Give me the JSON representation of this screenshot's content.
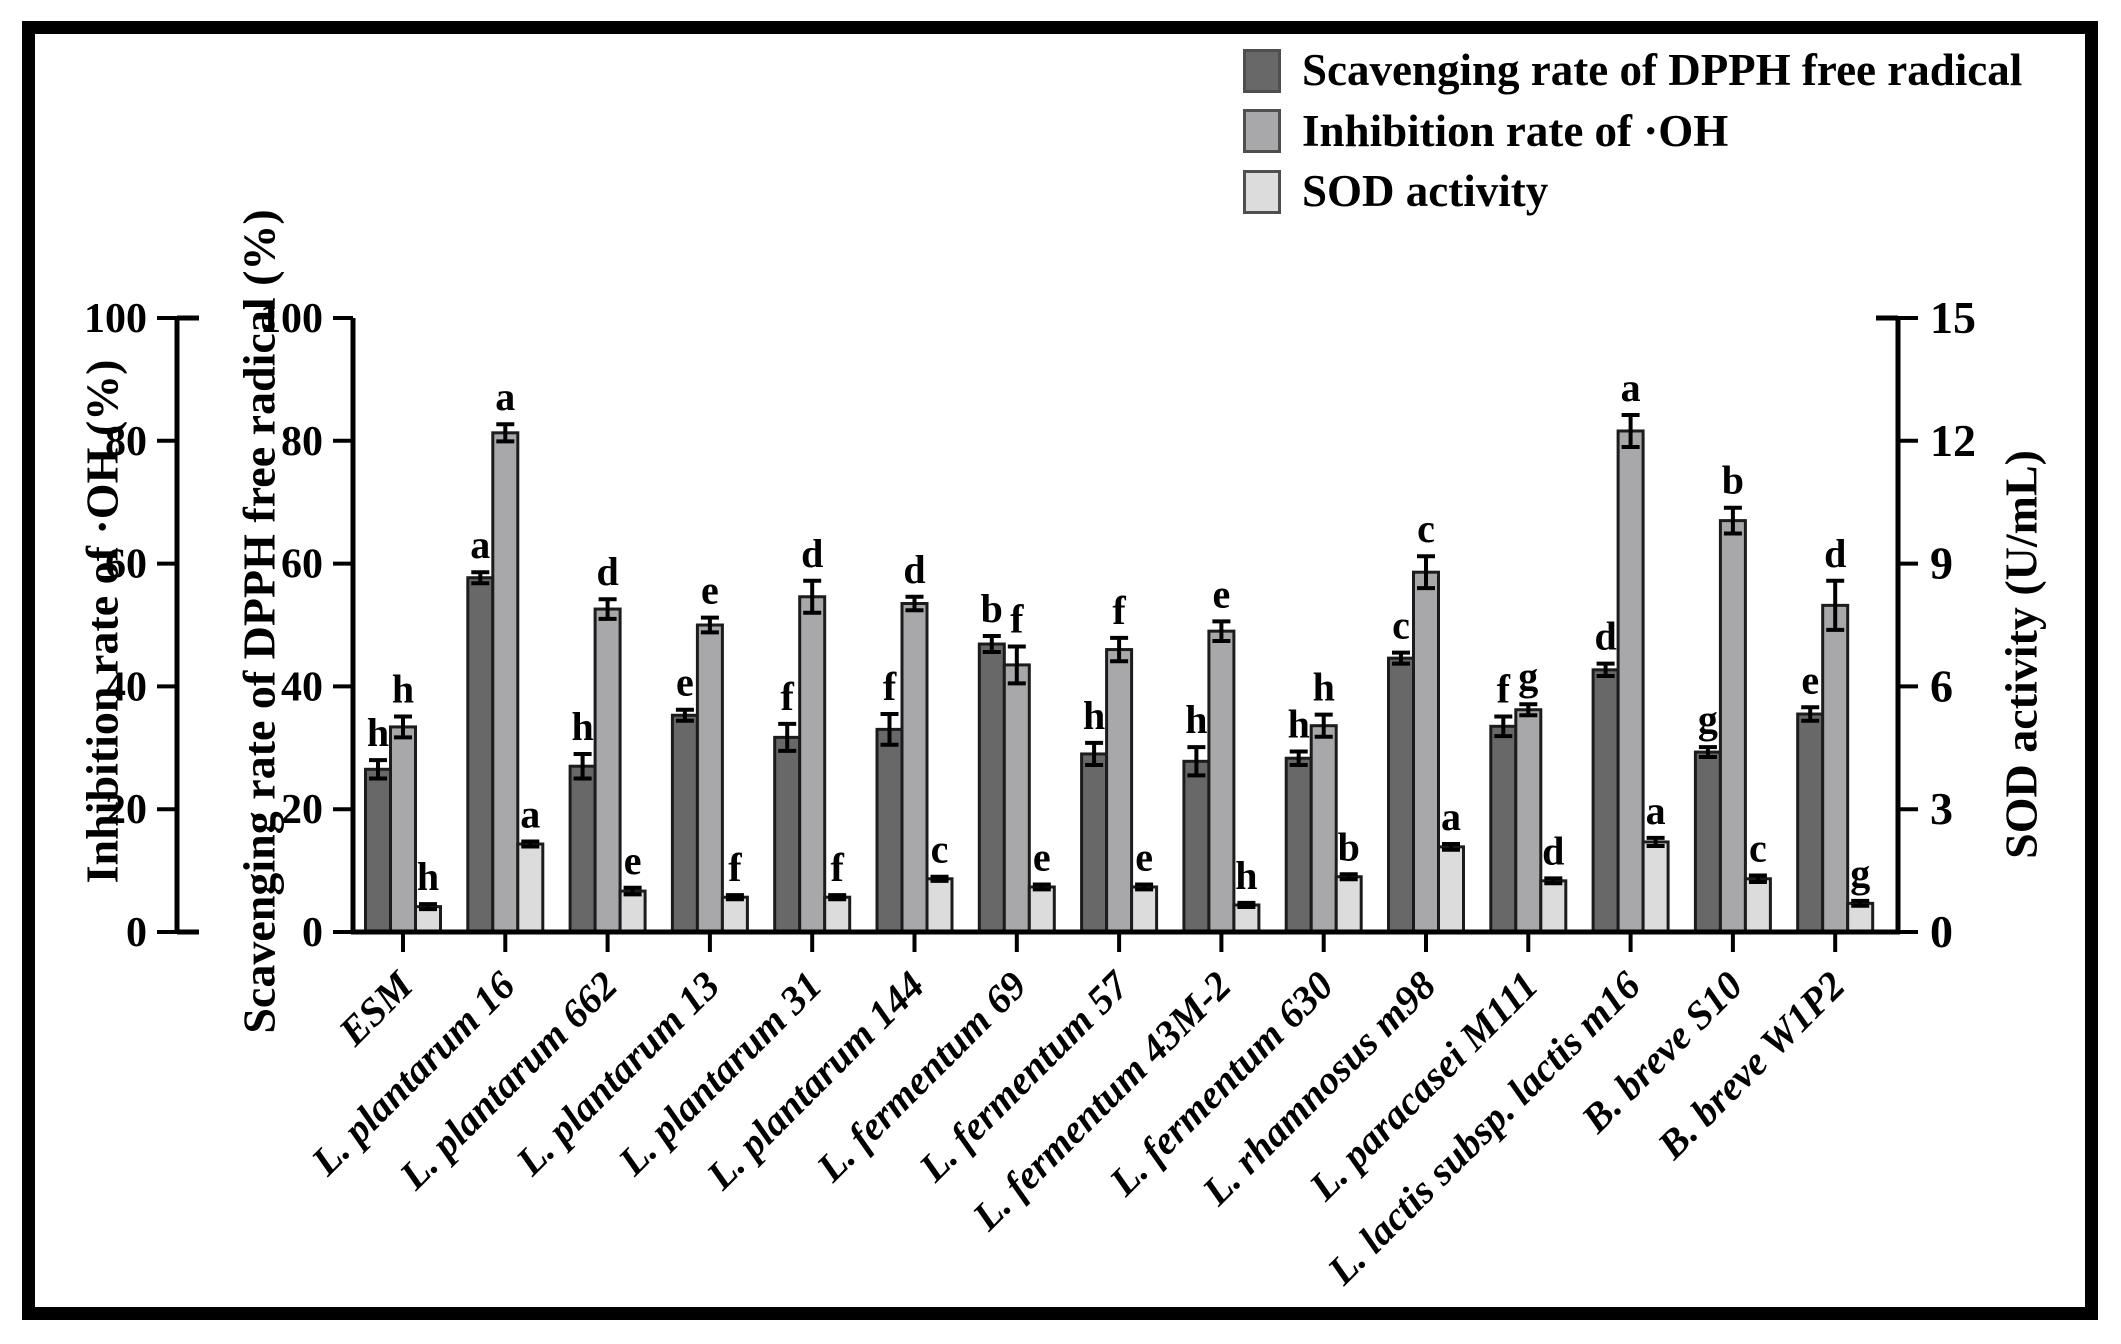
{
  "legend": {
    "items": [
      {
        "label": "Scavenging rate of DPPH free radical",
        "color": "#686868"
      },
      {
        "label": "Inhibition rate of ·OH",
        "color": "#a8a8ab"
      },
      {
        "label": "SOD activity",
        "color": "#dcdcdc"
      }
    ]
  },
  "axes": {
    "left_outer": {
      "title": "Inhibition rate of ·OH (%)",
      "ticks": [
        0,
        20,
        40,
        60,
        80,
        100
      ],
      "range": [
        0,
        100
      ]
    },
    "left_inner": {
      "title": "Scavenging rate of DPPH free radical (%)",
      "ticks": [
        0,
        20,
        40,
        60,
        80,
        100
      ],
      "range": [
        0,
        100
      ]
    },
    "right": {
      "title": "SOD activity (U/mL)",
      "ticks": [
        0,
        3,
        6,
        9,
        12,
        15
      ],
      "range": [
        0,
        15
      ]
    }
  },
  "chart_data": {
    "type": "bar",
    "grid": false,
    "legend_position": "top-right",
    "categories": [
      "ESM",
      "L. plantarum 16",
      "L. plantarum 662",
      "L. plantarum 13",
      "L. plantarum 31",
      "L. plantarum 144",
      "L. fermentum 69",
      "L. fermentum 57",
      "L. fermentum 43M-2",
      "L. fermentum 630",
      "L. rhamnosus m98",
      "L. paracasei M111",
      "L. lactis subsp. lactis m16",
      "B. breve S10",
      "B. breve W1P2"
    ],
    "percent_axis_range": [
      0,
      100
    ],
    "sod_axis_range": [
      0,
      15
    ],
    "series": [
      {
        "name": "Scavenging rate of DPPH free radical",
        "axis": "percent",
        "unit": "%",
        "color": "#686868",
        "values": [
          26.5,
          57.7,
          27.0,
          35.3,
          31.7,
          33.0,
          46.9,
          29.0,
          27.8,
          28.3,
          44.6,
          33.5,
          42.7,
          29.3,
          35.5
        ],
        "errors": [
          1.5,
          0.9,
          2.0,
          0.9,
          2.2,
          2.5,
          1.3,
          1.8,
          2.3,
          1.1,
          0.9,
          1.6,
          1.0,
          0.8,
          1.1
        ],
        "letters": [
          "h",
          "a",
          "h",
          "e",
          "f",
          "f",
          "b",
          "h",
          "h",
          "h",
          "c",
          "f",
          "d",
          "g",
          "e"
        ]
      },
      {
        "name": "Inhibition rate of ·OH",
        "axis": "percent",
        "unit": "%",
        "color": "#a8a8ab",
        "values": [
          33.4,
          81.3,
          52.6,
          50.0,
          54.6,
          53.5,
          43.5,
          46.0,
          49.0,
          33.6,
          58.6,
          36.2,
          81.6,
          67.0,
          53.2
        ],
        "errors": [
          1.7,
          1.4,
          1.6,
          1.2,
          2.6,
          1.1,
          3.0,
          1.9,
          1.6,
          1.8,
          2.6,
          0.9,
          2.6,
          2.1,
          4.0
        ],
        "letters": [
          "h",
          "a",
          "d",
          "e",
          "d",
          "d",
          "f",
          "f",
          "e",
          "h",
          "c",
          "g",
          "a",
          "b",
          "d"
        ]
      },
      {
        "name": "SOD activity",
        "axis": "sod",
        "unit": "U/mL",
        "color": "#dcdcdc",
        "values": [
          0.62,
          2.15,
          1.0,
          0.85,
          0.85,
          1.3,
          1.1,
          1.1,
          0.66,
          1.35,
          2.08,
          1.25,
          2.2,
          1.3,
          0.7
        ],
        "errors": [
          0.06,
          0.06,
          0.08,
          0.05,
          0.05,
          0.05,
          0.06,
          0.06,
          0.05,
          0.06,
          0.07,
          0.06,
          0.1,
          0.08,
          0.06
        ],
        "letters": [
          "h",
          "a",
          "e",
          "f",
          "f",
          "c",
          "e",
          "e",
          "h",
          "b",
          "a",
          "d",
          "a",
          "c",
          "g"
        ]
      }
    ]
  }
}
